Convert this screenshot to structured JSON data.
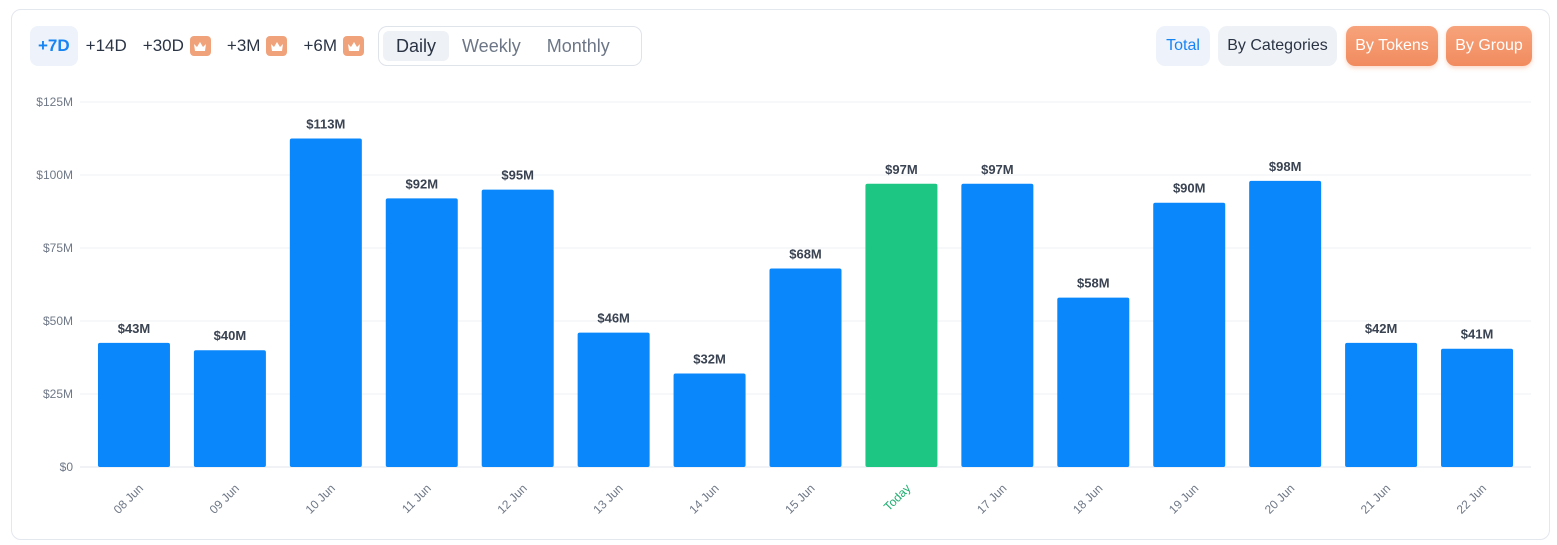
{
  "range_options": [
    {
      "label": "+7D",
      "premium": false,
      "active": true
    },
    {
      "label": "+14D",
      "premium": false,
      "active": false
    },
    {
      "label": "+30D",
      "premium": true,
      "active": false
    },
    {
      "label": "+3M",
      "premium": true,
      "active": false
    },
    {
      "label": "+6M",
      "premium": true,
      "active": false
    }
  ],
  "period_tabs": [
    {
      "label": "Daily",
      "active": true
    },
    {
      "label": "Weekly",
      "active": false
    },
    {
      "label": "Monthly",
      "active": false
    }
  ],
  "view_buttons": {
    "total": "Total",
    "by_categories": "By Categories",
    "by_tokens": "By Tokens",
    "by_group": "By Group"
  },
  "colors": {
    "bar": "#0a87fb",
    "bar_highlight": "#1dc783",
    "highlight_label": "#1dae6f",
    "accent": "#1784f4",
    "premium": "#f0a27b"
  },
  "icons": {
    "premium": "crown-icon"
  },
  "chart_data": {
    "type": "bar",
    "categories": [
      "08 Jun",
      "09 Jun",
      "10 Jun",
      "11 Jun",
      "12 Jun",
      "13 Jun",
      "14 Jun",
      "15 Jun",
      "Today",
      "17 Jun",
      "18 Jun",
      "19 Jun",
      "20 Jun",
      "21 Jun",
      "22 Jun"
    ],
    "values": [
      42.5,
      40,
      112.5,
      92,
      95,
      46,
      32,
      68,
      97,
      97,
      58,
      90.5,
      98,
      42.5,
      40.5
    ],
    "data_labels": [
      "$43M",
      "$40M",
      "$113M",
      "$92M",
      "$95M",
      "$46M",
      "$32M",
      "$68M",
      "$97M",
      "$97M",
      "$58M",
      "$90M",
      "$98M",
      "$42M",
      "$41M"
    ],
    "highlight_category": "Today",
    "y_ticks": [
      0,
      25,
      50,
      75,
      100,
      125
    ],
    "y_tick_labels": [
      "$0",
      "$25M",
      "$50M",
      "$75M",
      "$100M",
      "$125M"
    ],
    "ylim": [
      0,
      125
    ],
    "title": "",
    "xlabel": "",
    "ylabel": "",
    "grid": true,
    "legend": "none"
  }
}
